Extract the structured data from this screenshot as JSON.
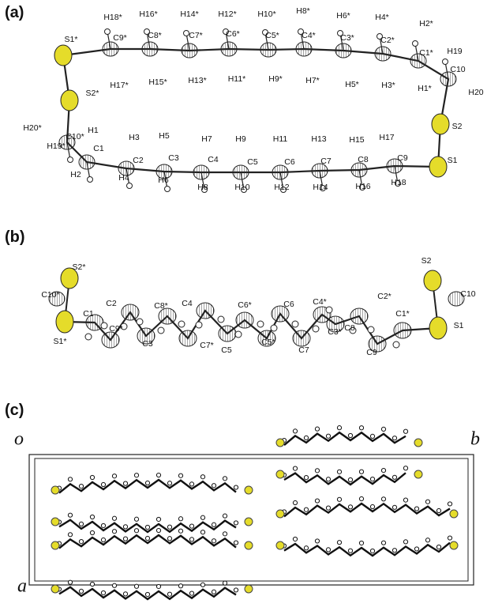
{
  "panels": [
    {
      "label": "(a)",
      "atoms": [
        "H18*",
        "H16*",
        "H14*",
        "H12*",
        "H10*",
        "H8*",
        "H6*",
        "H4*",
        "H2*",
        "S1*",
        "C9*",
        "C8*",
        "C7*",
        "C6*",
        "C5*",
        "C4*",
        "C3*",
        "C2*",
        "C1*",
        "H19",
        "C10",
        "H20",
        "H17*",
        "H15*",
        "H13*",
        "H11*",
        "H9*",
        "H7*",
        "H5*",
        "H3*",
        "H1*",
        "S2*",
        "S2",
        "S1",
        "H20*",
        "C10*",
        "H1",
        "C1",
        "H19*",
        "H3",
        "H5",
        "H7",
        "H9",
        "H11",
        "H13",
        "H15",
        "H17",
        "C2",
        "C3",
        "C4",
        "C5",
        "C6",
        "C7",
        "C8",
        "C9",
        "H2",
        "H4",
        "H6",
        "H8",
        "H10",
        "H12",
        "H14",
        "H16",
        "H18"
      ]
    },
    {
      "label": "(b)",
      "atoms": [
        "S2*",
        "C10*",
        "S1*",
        "C1",
        "C2",
        "C8*",
        "C9*",
        "C3",
        "C4",
        "C6*",
        "C7*",
        "C5",
        "C6",
        "C5*",
        "C4*",
        "C3*",
        "C8",
        "C7",
        "C2*",
        "C1*",
        "C9",
        "S2",
        "C10",
        "S1"
      ]
    },
    {
      "label": "(c)",
      "axes": [
        "o",
        "b",
        "a"
      ]
    }
  ]
}
